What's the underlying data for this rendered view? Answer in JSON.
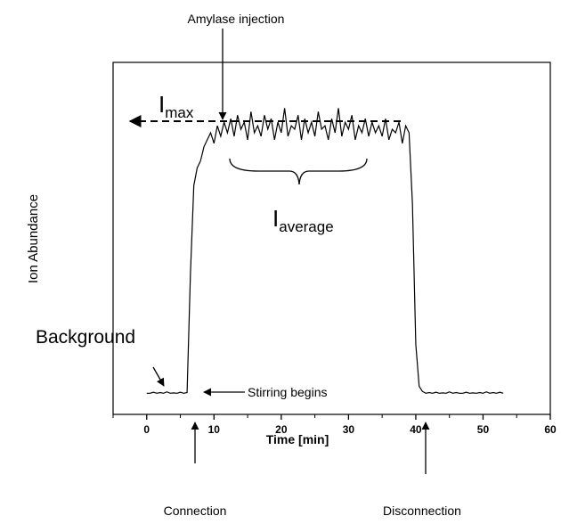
{
  "chart_data": {
    "type": "line",
    "xlabel": "Time [min]",
    "ylabel": "Ion Abundance",
    "annotations": [
      "Amylase injection",
      "Background",
      "Stirring begins",
      "Connection",
      "Disconnection"
    ],
    "imax_label": [
      "I",
      "max"
    ],
    "iaverage_label": [
      "I",
      "average"
    ],
    "xlim": [
      -5,
      60
    ],
    "xticks": [
      0,
      10,
      20,
      30,
      40,
      50,
      60
    ],
    "xminor_ticks": [
      -5,
      5,
      15,
      25,
      35,
      45,
      55
    ],
    "ylim": [
      0,
      100
    ],
    "x": [
      0,
      0.5,
      1,
      1.5,
      2,
      2.5,
      3,
      3.5,
      4,
      4.5,
      5,
      5.5,
      6,
      6.5,
      7,
      7.5,
      8,
      8.5,
      9,
      9.5,
      10,
      10.5,
      11,
      11.5,
      12,
      12.5,
      13,
      13.5,
      14,
      14.5,
      15,
      15.5,
      16,
      16.5,
      17,
      17.5,
      18,
      18.5,
      19,
      19.5,
      20,
      20.5,
      21,
      21.5,
      22,
      22.5,
      23,
      23.5,
      24,
      24.5,
      25,
      25.5,
      26,
      26.5,
      27,
      27.5,
      28,
      28.5,
      29,
      29.5,
      30,
      30.5,
      31,
      31.5,
      32,
      32.5,
      33,
      33.5,
      34,
      34.5,
      35,
      35.5,
      36,
      36.5,
      37,
      37.5,
      38,
      38.5,
      39,
      39.5,
      40,
      40.5,
      41,
      41.5,
      42,
      42.5,
      43,
      43.5,
      44,
      44.5,
      45,
      45.5,
      46,
      46.5,
      47,
      47.5,
      48,
      48.5,
      49,
      49.5,
      50,
      50.5,
      51,
      51.5,
      52,
      52.5,
      53
    ],
    "series": [
      {
        "color": "#000000",
        "values": [
          6,
          6,
          6.3,
          6,
          6.2,
          6,
          6.4,
          6,
          6.1,
          6,
          6.3,
          6,
          6.2,
          40,
          65,
          70,
          72,
          76,
          78,
          80,
          77,
          82,
          79,
          83,
          80,
          84,
          79,
          85,
          81,
          83,
          78,
          86,
          80,
          82,
          79,
          85,
          81,
          84,
          78,
          83,
          80,
          87,
          79,
          82,
          81,
          85,
          78,
          84,
          80,
          83,
          79,
          86,
          81,
          82,
          78,
          84,
          80,
          87,
          79,
          83,
          81,
          85,
          78,
          82,
          80,
          84,
          79,
          83,
          80,
          82,
          79,
          84,
          78,
          81,
          80,
          83,
          77,
          82,
          80,
          60,
          20,
          8,
          6.5,
          6,
          6.2,
          6,
          6.3,
          6,
          6.1,
          6,
          6.4,
          6,
          6.2,
          6,
          6,
          6.3,
          6,
          6.1,
          6,
          6.2,
          6,
          6.4,
          6,
          6.2,
          6,
          6.3,
          6
        ]
      }
    ]
  }
}
